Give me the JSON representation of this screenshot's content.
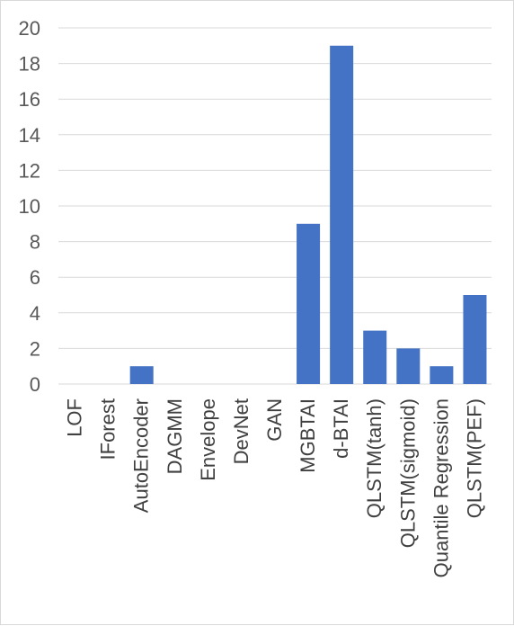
{
  "chart_data": {
    "type": "bar",
    "categories": [
      "LOF",
      "IForest",
      "AutoEncoder",
      "DAGMM",
      "Envelope",
      "DevNet",
      "GAN",
      "MGBTAI",
      "d-BTAI",
      "QLSTM(tanh)",
      "QLSTM(sigmoid)",
      "Quantile Regression",
      "QLSTM(PEF)"
    ],
    "values": [
      0,
      0,
      1,
      0,
      0,
      0,
      0,
      9,
      19,
      3,
      2,
      1,
      5
    ],
    "ylim": [
      0,
      20
    ],
    "yticks": [
      0,
      2,
      4,
      6,
      8,
      10,
      12,
      14,
      16,
      18,
      20
    ],
    "bar_color": "#4472c4",
    "grid": true,
    "legend": "none"
  }
}
